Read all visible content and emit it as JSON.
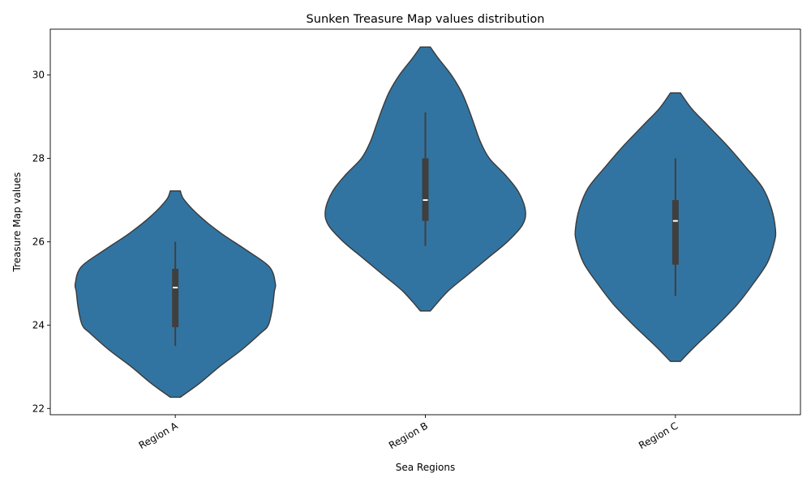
{
  "chart_data": {
    "type": "violin",
    "title": "Sunken Treasure Map values distribution",
    "xlabel": "Sea Regions",
    "ylabel": "Treasure Map values",
    "ylim": [
      21.85,
      31.1
    ],
    "yticks": [
      22,
      24,
      26,
      28,
      30
    ],
    "grid": false,
    "legend": "none",
    "colors": {
      "violin_fill": "#3274a1",
      "violin_edge": "#3a3a3a",
      "box": "#3f3f3f",
      "median": "#ffffff"
    },
    "categories": [
      "Region A",
      "Region B",
      "Region C"
    ],
    "violins": [
      {
        "category": "Region A",
        "min": 23.5,
        "q1": 23.95,
        "median": 24.9,
        "q3": 25.35,
        "max": 26.0,
        "kde_y": [
          22.27,
          22.6,
          23.0,
          23.4,
          23.8,
          24.0,
          24.4,
          24.8,
          25.0,
          25.4,
          25.8,
          26.2,
          26.6,
          27.0,
          27.22
        ],
        "kde_width": [
          0.05,
          0.24,
          0.44,
          0.66,
          0.85,
          0.93,
          0.97,
          0.99,
          1.0,
          0.94,
          0.71,
          0.46,
          0.25,
          0.09,
          0.05
        ]
      },
      {
        "category": "Region B",
        "min": 25.9,
        "q1": 26.5,
        "median": 27.0,
        "q3": 28.0,
        "max": 29.1,
        "kde_y": [
          24.34,
          24.8,
          25.2,
          25.6,
          26.0,
          26.4,
          26.75,
          27.2,
          27.6,
          28.0,
          28.4,
          28.8,
          29.2,
          29.6,
          30.0,
          30.4,
          30.67
        ],
        "kde_width": [
          0.05,
          0.22,
          0.42,
          0.62,
          0.82,
          0.97,
          1.0,
          0.93,
          0.8,
          0.64,
          0.55,
          0.49,
          0.43,
          0.36,
          0.26,
          0.13,
          0.05
        ]
      },
      {
        "category": "Region C",
        "min": 24.7,
        "q1": 25.45,
        "median": 26.5,
        "q3": 27.0,
        "max": 28.0,
        "kde_y": [
          23.13,
          23.5,
          24.0,
          24.5,
          25.0,
          25.5,
          26.0,
          26.3,
          26.8,
          27.3,
          27.8,
          28.3,
          28.8,
          29.2,
          29.57
        ],
        "kde_width": [
          0.05,
          0.2,
          0.42,
          0.62,
          0.78,
          0.92,
          0.99,
          1.0,
          0.96,
          0.87,
          0.7,
          0.52,
          0.32,
          0.16,
          0.05
        ]
      }
    ]
  }
}
